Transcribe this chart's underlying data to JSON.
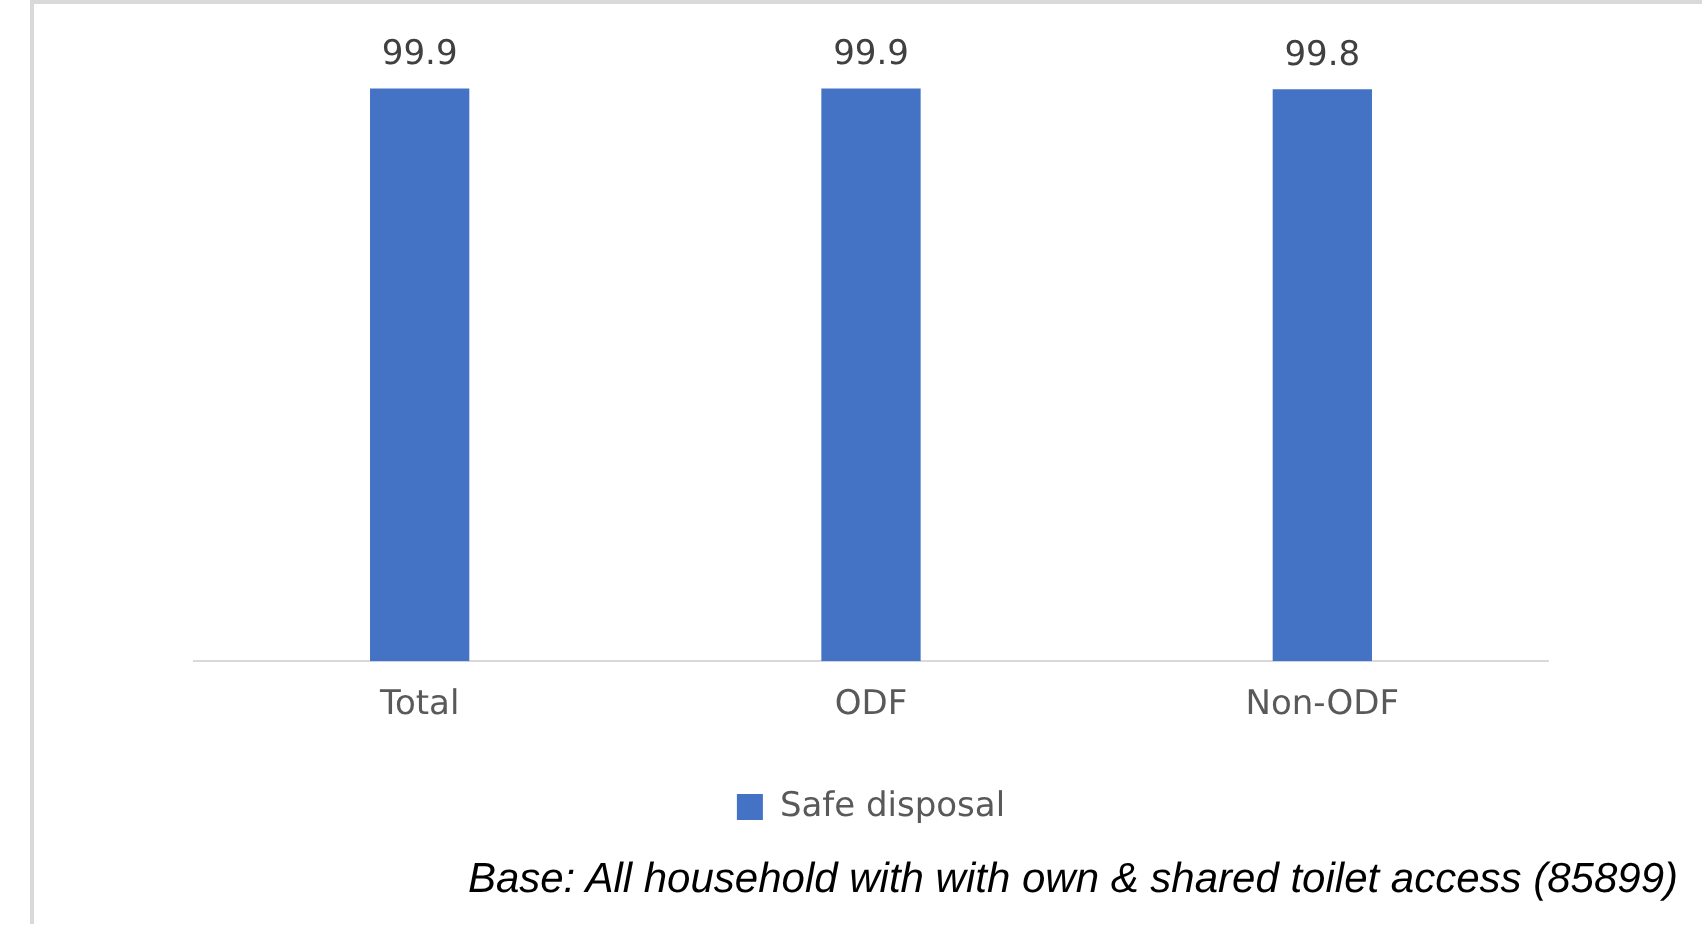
{
  "chart_data": {
    "type": "bar",
    "categories": [
      "Total",
      "ODF",
      "Non-ODF"
    ],
    "series": [
      {
        "name": "Safe disposal",
        "color": "#4472c4",
        "values": [
          99.9,
          99.9,
          99.8
        ]
      }
    ],
    "data_labels": true,
    "legend": "bottom",
    "grid": false,
    "annotations": [
      "Base: All household with with own & shared toilet access (85899)"
    ]
  }
}
